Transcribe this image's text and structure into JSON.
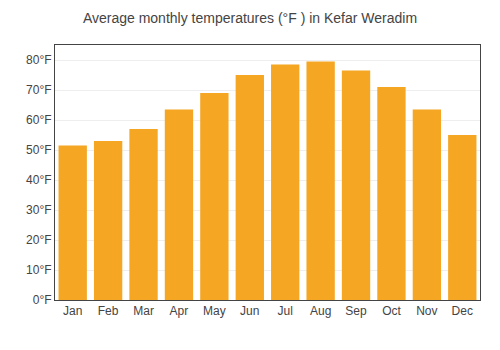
{
  "chart_data": {
    "type": "bar",
    "title": "Average monthly temperatures (°F ) in Kefar Weradim",
    "categories": [
      "Jan",
      "Feb",
      "Mar",
      "Apr",
      "May",
      "Jun",
      "Jul",
      "Aug",
      "Sep",
      "Oct",
      "Nov",
      "Dec"
    ],
    "values": [
      51.5,
      53,
      57,
      63.5,
      69,
      75,
      78.5,
      79.5,
      76.5,
      71,
      63.5,
      55
    ],
    "color": "#F5A623",
    "ylim": [
      0,
      85
    ],
    "yticks": [
      {
        "value": 0,
        "label": "0°F"
      },
      {
        "value": 10,
        "label": "10°F"
      },
      {
        "value": 20,
        "label": "20°F"
      },
      {
        "value": 30,
        "label": "30°F"
      },
      {
        "value": 40,
        "label": "40°F"
      },
      {
        "value": 50,
        "label": "50°F"
      },
      {
        "value": 60,
        "label": "60°F"
      },
      {
        "value": 70,
        "label": "70°F"
      },
      {
        "value": 80,
        "label": "80°F"
      }
    ],
    "grid": true
  }
}
